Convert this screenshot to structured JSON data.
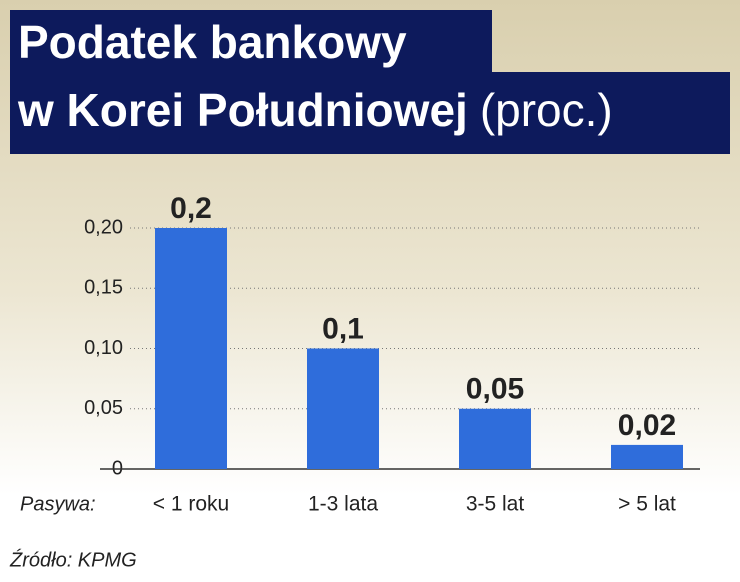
{
  "chart_data": {
    "type": "bar",
    "title": [
      "Podatek bankowy",
      "w Korei Południowej"
    ],
    "unit": "(proc.)",
    "x_label": "Pasywa:",
    "categories": [
      "< 1 roku",
      "1-3 lata",
      "3-5 lat",
      "> 5 lat"
    ],
    "values": [
      0.2,
      0.1,
      0.05,
      0.02
    ],
    "value_labels": [
      "0,2",
      "0,1",
      "0,05",
      "0,02"
    ],
    "color": "#2f6ddb",
    "ylim": [
      0,
      0.2
    ],
    "yticks": [
      0,
      {
        "value": 0.05,
        "label": "0,05"
      },
      {
        "value": 0.1,
        "label": "0,10"
      },
      {
        "value": 0.15,
        "label": "0,15"
      },
      {
        "value": 0.2,
        "label": "0,20"
      }
    ],
    "grid": true,
    "source": "Źródło: KPMG"
  }
}
